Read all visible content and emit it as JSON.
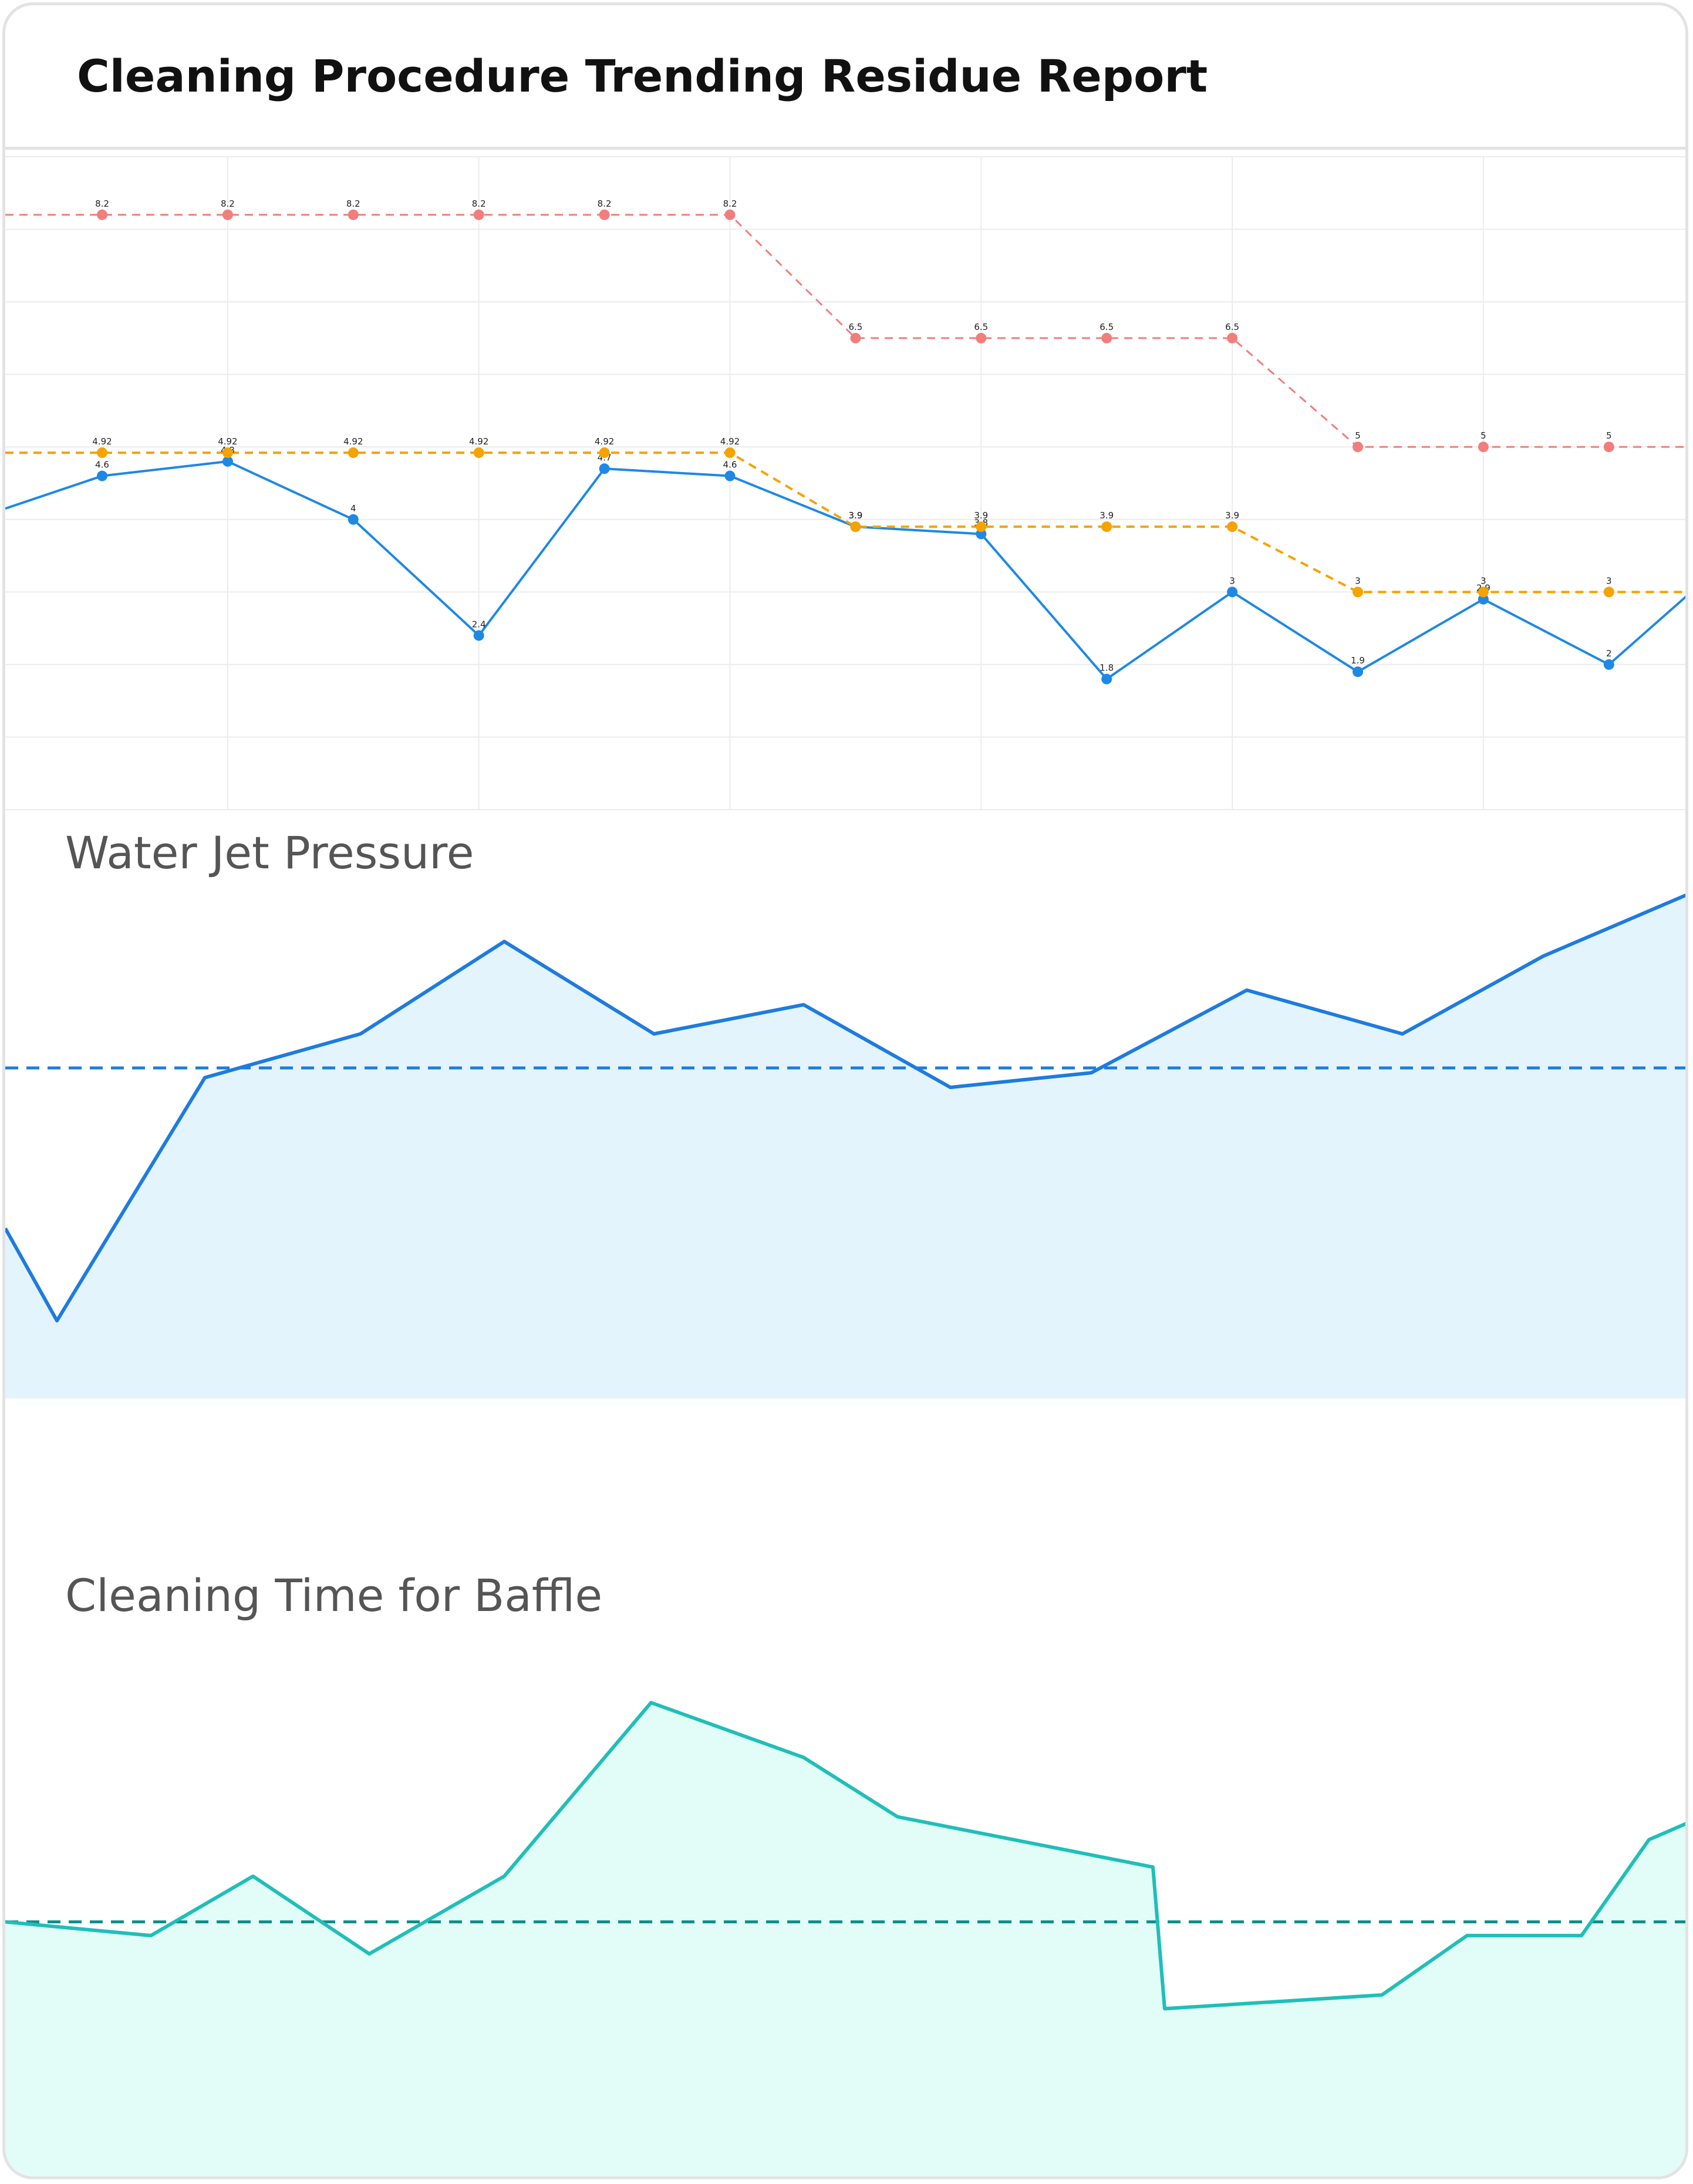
{
  "header": {
    "title": "Cleaning Procedure Trending Residue Report"
  },
  "colors": {
    "series_main": "#1e88e5",
    "alert_limit": "#f4a300",
    "action_limit": "#f27d7d",
    "pressure_line": "#1e7be0",
    "pressure_fill": "#e4f4fd",
    "time_line": "#1fbfb8",
    "time_fill": "#e2fcf7",
    "time_ref": "#0f8f8a",
    "grid": "#ececec"
  },
  "chart_data": [
    {
      "type": "line",
      "title": "",
      "xlabel": "",
      "ylabel": "",
      "ylim": [
        0,
        9
      ],
      "grid": true,
      "x": [
        1,
        2,
        3,
        4,
        5,
        6,
        7,
        8,
        9,
        10,
        11,
        12,
        13
      ],
      "series": [
        {
          "values": [
            4.6,
            4.8,
            4,
            2.4,
            4.7,
            4.6,
            3.9,
            3.8,
            1.8,
            3,
            1.9,
            2.9,
            2
          ]
        },
        {
          "values": [
            4.92,
            4.92,
            4.92,
            4.92,
            4.92,
            4.92,
            3.9,
            3.9,
            3.9,
            3.9,
            3,
            3,
            3
          ]
        },
        {
          "values": [
            8.2,
            8.2,
            8.2,
            8.2,
            8.2,
            8.2,
            6.5,
            6.5,
            6.5,
            6.5,
            5,
            5,
            5
          ]
        }
      ]
    },
    {
      "type": "area",
      "title": "Water Jet Pressure",
      "xlabel": "",
      "ylabel": "",
      "ylim": [
        0,
        100
      ],
      "grid": false,
      "values": [
        35,
        16,
        66,
        75,
        94,
        75,
        81,
        64,
        67,
        84,
        75,
        91,
        104
      ],
      "reference_line": 68
    },
    {
      "type": "area",
      "title": "Cleaning Time for Baffle",
      "xlabel": "",
      "ylabel": "",
      "ylim": [
        0,
        100
      ],
      "grid": false,
      "values": [
        57,
        54,
        67,
        50,
        67,
        105,
        93,
        80,
        69,
        38,
        41,
        54,
        54,
        75,
        79
      ],
      "reference_line": 57
    }
  ]
}
